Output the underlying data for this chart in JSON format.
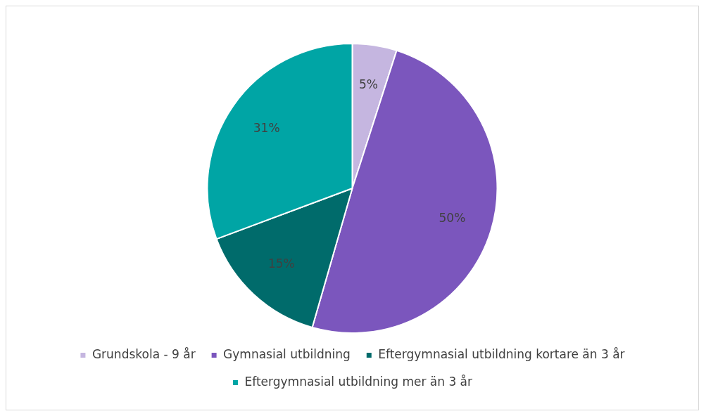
{
  "chart_data": {
    "type": "pie",
    "categories": [
      "Grundskola - 9 år",
      "Gymnasial utbildning",
      "Eftergymnasial utbildning kortare än 3 år",
      "Eftergymnasial utbildning mer än 3 år"
    ],
    "values": [
      5,
      50,
      15,
      31
    ],
    "value_labels": [
      "5%",
      "50%",
      "15%",
      "31%"
    ],
    "colors": [
      "#c5b6e0",
      "#7b56bd",
      "#006b6b",
      "#00a5a5"
    ],
    "legend": "bottom"
  }
}
